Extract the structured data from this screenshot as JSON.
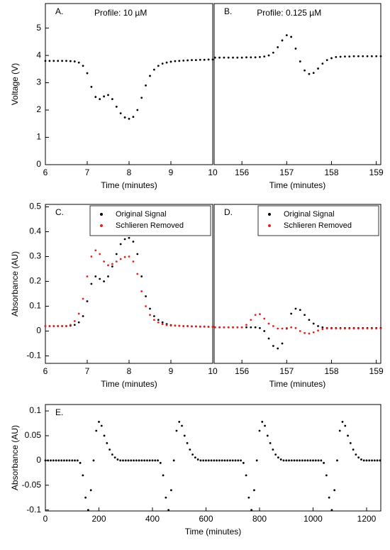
{
  "chart_data": [
    {
      "type": "scatter",
      "panel_label": "A.",
      "title": "Profile: 10 µM",
      "x_label": "Time (minutes)",
      "y_label": "Voltage (V)",
      "x": [
        6.0,
        6.1,
        6.2,
        6.3,
        6.4,
        6.5,
        6.6,
        6.7,
        6.8,
        6.9,
        7.0,
        7.1,
        7.2,
        7.3,
        7.4,
        7.5,
        7.6,
        7.7,
        7.8,
        7.9,
        8.0,
        8.1,
        8.2,
        8.3,
        8.4,
        8.5,
        8.6,
        8.7,
        8.8,
        8.9,
        9.0,
        9.1,
        9.2,
        9.3,
        9.4,
        9.5,
        9.6,
        9.7,
        9.8,
        9.9,
        10.0
      ],
      "series": [
        {
          "color": "#000000",
          "values": [
            3.8,
            3.8,
            3.8,
            3.8,
            3.8,
            3.8,
            3.79,
            3.78,
            3.74,
            3.62,
            3.35,
            2.85,
            2.48,
            2.4,
            2.5,
            2.55,
            2.4,
            2.12,
            1.88,
            1.73,
            1.68,
            1.75,
            2.0,
            2.45,
            2.9,
            3.25,
            3.48,
            3.62,
            3.7,
            3.74,
            3.77,
            3.79,
            3.8,
            3.81,
            3.82,
            3.83,
            3.83,
            3.84,
            3.84,
            3.85,
            3.85
          ]
        }
      ],
      "xlim": [
        6,
        10
      ],
      "ylim": [
        0,
        5.9
      ],
      "xticks": [
        6,
        7,
        8,
        9,
        10
      ],
      "yticks": [
        0,
        1,
        2,
        3,
        4,
        5
      ]
    },
    {
      "type": "scatter",
      "panel_label": "B.",
      "title": "Profile: 0.125 µM",
      "x_label": "Time (minutes)",
      "x": [
        155.4,
        155.5,
        155.6,
        155.7,
        155.8,
        155.9,
        156.0,
        156.1,
        156.2,
        156.3,
        156.4,
        156.5,
        156.6,
        156.7,
        156.8,
        156.9,
        157.0,
        157.1,
        157.2,
        157.3,
        157.4,
        157.5,
        157.6,
        157.7,
        157.8,
        157.9,
        158.0,
        158.1,
        158.2,
        158.3,
        158.4,
        158.5,
        158.6,
        158.7,
        158.8,
        158.9,
        159.0,
        159.1
      ],
      "series": [
        {
          "color": "#000000",
          "values": [
            3.92,
            3.92,
            3.92,
            3.92,
            3.92,
            3.92,
            3.92,
            3.93,
            3.93,
            3.93,
            3.94,
            3.96,
            4.0,
            4.1,
            4.3,
            4.55,
            4.74,
            4.68,
            4.25,
            3.78,
            3.45,
            3.32,
            3.36,
            3.52,
            3.7,
            3.83,
            3.9,
            3.94,
            3.95,
            3.96,
            3.96,
            3.97,
            3.97,
            3.97,
            3.97,
            3.97,
            3.97,
            3.97
          ]
        }
      ],
      "xlim": [
        155.38,
        159.1
      ],
      "ylim": [
        0,
        5.9
      ],
      "xticks": [
        156,
        157,
        158,
        159
      ]
    },
    {
      "type": "scatter",
      "panel_label": "C.",
      "x_label": "Time (minutes)",
      "y_label": "Absorbance (AU)",
      "legend": "upper right",
      "x": [
        6.0,
        6.1,
        6.2,
        6.3,
        6.4,
        6.5,
        6.6,
        6.7,
        6.8,
        6.9,
        7.0,
        7.1,
        7.2,
        7.3,
        7.4,
        7.5,
        7.6,
        7.7,
        7.8,
        7.9,
        8.0,
        8.1,
        8.2,
        8.3,
        8.4,
        8.5,
        8.6,
        8.7,
        8.8,
        8.9,
        9.0,
        9.1,
        9.2,
        9.3,
        9.4,
        9.5,
        9.6,
        9.7,
        9.8,
        9.9,
        10.0
      ],
      "series": [
        {
          "name": "Original Signal",
          "color": "#000000",
          "values": [
            0.02,
            0.02,
            0.02,
            0.02,
            0.02,
            0.02,
            0.022,
            0.025,
            0.035,
            0.06,
            0.12,
            0.19,
            0.22,
            0.21,
            0.2,
            0.22,
            0.26,
            0.31,
            0.35,
            0.37,
            0.375,
            0.36,
            0.31,
            0.22,
            0.14,
            0.09,
            0.06,
            0.045,
            0.035,
            0.028,
            0.024,
            0.022,
            0.021,
            0.02,
            0.02,
            0.019,
            0.019,
            0.018,
            0.018,
            0.017,
            0.017
          ]
        },
        {
          "name": "Schlieren Removed",
          "color": "#e8201c",
          "values": [
            0.02,
            0.02,
            0.02,
            0.02,
            0.02,
            0.02,
            0.025,
            0.04,
            0.07,
            0.13,
            0.22,
            0.3,
            0.325,
            0.31,
            0.28,
            0.265,
            0.27,
            0.28,
            0.29,
            0.298,
            0.3,
            0.28,
            0.23,
            0.16,
            0.1,
            0.065,
            0.045,
            0.035,
            0.028,
            0.024,
            0.022,
            0.022,
            0.021,
            0.02,
            0.02,
            0.019,
            0.019,
            0.018,
            0.018,
            0.017,
            0.017
          ]
        }
      ],
      "xlim": [
        6,
        10
      ],
      "ylim": [
        -0.13,
        0.51
      ],
      "xticks": [
        6,
        7,
        8,
        9,
        10
      ],
      "yticks": [
        -0.1,
        0,
        0.1,
        0.2,
        0.3,
        0.4,
        0.5
      ]
    },
    {
      "type": "scatter",
      "panel_label": "D.",
      "x_label": "Time (minutes)",
      "legend": "upper right",
      "x": [
        155.4,
        155.5,
        155.6,
        155.7,
        155.8,
        155.9,
        156.0,
        156.1,
        156.2,
        156.3,
        156.4,
        156.5,
        156.6,
        156.7,
        156.8,
        156.9,
        157.0,
        157.1,
        157.2,
        157.3,
        157.4,
        157.5,
        157.6,
        157.7,
        157.8,
        157.9,
        158.0,
        158.1,
        158.2,
        158.3,
        158.4,
        158.5,
        158.6,
        158.7,
        158.8,
        158.9,
        159.0,
        159.1
      ],
      "series": [
        {
          "name": "Original Signal",
          "color": "#000000",
          "values": [
            0.015,
            0.015,
            0.015,
            0.015,
            0.015,
            0.015,
            0.015,
            0.015,
            0.015,
            0.015,
            0.012,
            0.0,
            -0.03,
            -0.06,
            -0.07,
            -0.05,
            0.01,
            0.07,
            0.09,
            0.085,
            0.065,
            0.045,
            0.03,
            0.02,
            0.015,
            0.012,
            0.012,
            0.012,
            0.012,
            0.012,
            0.012,
            0.012,
            0.012,
            0.012,
            0.012,
            0.012,
            0.012,
            0.012
          ]
        },
        {
          "name": "Schlieren Removed",
          "color": "#e8201c",
          "values": [
            0.015,
            0.015,
            0.015,
            0.015,
            0.015,
            0.015,
            0.015,
            0.025,
            0.045,
            0.065,
            0.068,
            0.05,
            0.03,
            0.02,
            0.01,
            0.01,
            0.012,
            0.015,
            0.012,
            0.0,
            -0.008,
            -0.01,
            -0.005,
            0.002,
            0.008,
            0.01,
            0.01,
            0.01,
            0.01,
            0.01,
            0.01,
            0.01,
            0.01,
            0.01,
            0.01,
            0.01,
            0.01,
            0.01
          ]
        }
      ],
      "xlim": [
        155.38,
        159.1
      ],
      "ylim": [
        -0.13,
        0.51
      ],
      "xticks": [
        156,
        157,
        158,
        159
      ]
    },
    {
      "type": "scatter",
      "panel_label": "E.",
      "x_label": "Time (minutes)",
      "y_label": "Absorbance (AU)",
      "x": [
        0,
        10,
        20,
        30,
        40,
        50,
        60,
        70,
        80,
        90,
        100,
        110,
        120,
        130,
        140,
        150,
        160,
        170,
        180,
        190,
        200,
        210,
        220,
        230,
        240,
        250,
        260,
        270,
        280,
        290,
        300,
        310,
        320,
        330,
        340,
        350,
        360,
        370,
        380,
        390,
        400,
        410,
        420,
        430,
        440,
        450,
        460,
        470,
        480,
        490,
        500,
        510,
        520,
        530,
        540,
        550,
        560,
        570,
        580,
        590,
        600,
        610,
        620,
        630,
        640,
        650,
        660,
        670,
        680,
        690,
        700,
        710,
        720,
        730,
        740,
        750,
        760,
        770,
        780,
        790,
        800,
        810,
        820,
        830,
        840,
        850,
        860,
        870,
        880,
        890,
        900,
        910,
        920,
        930,
        940,
        950,
        960,
        970,
        980,
        990,
        1000,
        1010,
        1020,
        1030,
        1040,
        1050,
        1060,
        1070,
        1080,
        1090,
        1100,
        1110,
        1120,
        1130,
        1140,
        1150,
        1160,
        1170,
        1180,
        1190,
        1200,
        1210,
        1220,
        1230,
        1240,
        1250
      ],
      "series": [
        {
          "color": "#000000",
          "values": [
            0,
            0,
            0,
            0,
            0,
            0,
            0,
            0,
            0,
            0,
            0,
            0,
            0,
            -0.005,
            -0.03,
            -0.075,
            -0.1,
            -0.06,
            0,
            0.06,
            0.078,
            0.07,
            0.05,
            0.035,
            0.022,
            0.012,
            0.006,
            0.002,
            0,
            0,
            0,
            0,
            0,
            0,
            0,
            0,
            0,
            0,
            0,
            0,
            0,
            0,
            0,
            -0.005,
            -0.03,
            -0.075,
            -0.1,
            -0.06,
            0,
            0.06,
            0.078,
            0.07,
            0.05,
            0.035,
            0.022,
            0.012,
            0.006,
            0.002,
            0,
            0,
            0,
            0,
            0,
            0,
            0,
            0,
            0,
            0,
            0,
            0,
            0,
            0,
            0,
            0,
            -0.005,
            -0.03,
            -0.075,
            -0.1,
            -0.06,
            0,
            0.06,
            0.078,
            0.07,
            0.05,
            0.035,
            0.022,
            0.012,
            0.006,
            0.002,
            0,
            0,
            0,
            0,
            0,
            0,
            0,
            0,
            0,
            0,
            0,
            0,
            0,
            0,
            0,
            -0.005,
            -0.03,
            -0.075,
            -0.1,
            -0.06,
            0,
            0.06,
            0.078,
            0.07,
            0.05,
            0.035,
            0.022,
            0.012,
            0.006,
            0.002,
            0,
            0,
            0,
            0,
            0,
            0,
            0
          ]
        }
      ],
      "xlim": [
        0,
        1253
      ],
      "ylim": [
        -0.102,
        0.113
      ],
      "xticks": [
        0,
        200,
        400,
        600,
        800,
        1000,
        1200
      ],
      "yticks": [
        -0.1,
        -0.05,
        0,
        0.05,
        0.1
      ]
    }
  ]
}
